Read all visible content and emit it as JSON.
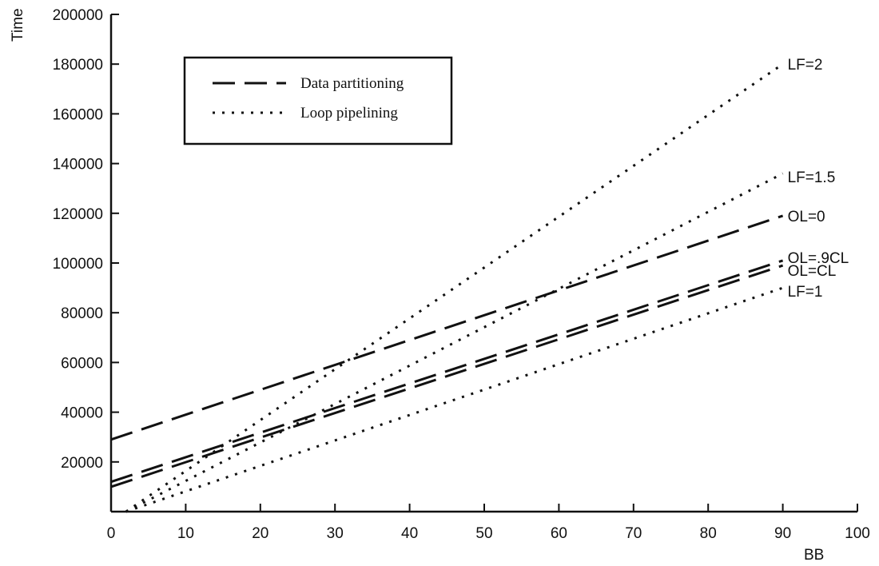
{
  "chart_data": {
    "type": "line",
    "title": "",
    "xlabel": "BB",
    "ylabel": "Time",
    "xlim": [
      0,
      100
    ],
    "ylim": [
      0,
      200000
    ],
    "x_ticks": [
      0,
      10,
      20,
      30,
      40,
      50,
      60,
      70,
      80,
      90,
      100
    ],
    "y_ticks": [
      20000,
      40000,
      60000,
      80000,
      100000,
      120000,
      140000,
      160000,
      180000,
      200000
    ],
    "grid": false,
    "legend": {
      "placement": "top-left",
      "entries": [
        {
          "label": "Data partitioning",
          "style": "dashed"
        },
        {
          "label": "Loop pipelining",
          "style": "dotted"
        }
      ]
    },
    "series": [
      {
        "name": "LF=2",
        "style": "dotted",
        "points": [
          [
            2,
            0
          ],
          [
            90,
            180000
          ]
        ]
      },
      {
        "name": "LF=1.5",
        "style": "dotted",
        "points": [
          [
            2,
            0
          ],
          [
            90,
            136000
          ]
        ]
      },
      {
        "name": "OL=0",
        "style": "dashed",
        "points": [
          [
            0,
            29000
          ],
          [
            90,
            119000
          ]
        ]
      },
      {
        "name": "OL=.9CL",
        "style": "dashed",
        "points": [
          [
            0,
            12000
          ],
          [
            90,
            101000
          ]
        ]
      },
      {
        "name": "OL=CL",
        "style": "dashed",
        "points": [
          [
            0,
            10000
          ],
          [
            90,
            99000
          ]
        ]
      },
      {
        "name": "LF=1",
        "style": "dotted",
        "points": [
          [
            2,
            0
          ],
          [
            90,
            90000
          ]
        ]
      }
    ]
  }
}
